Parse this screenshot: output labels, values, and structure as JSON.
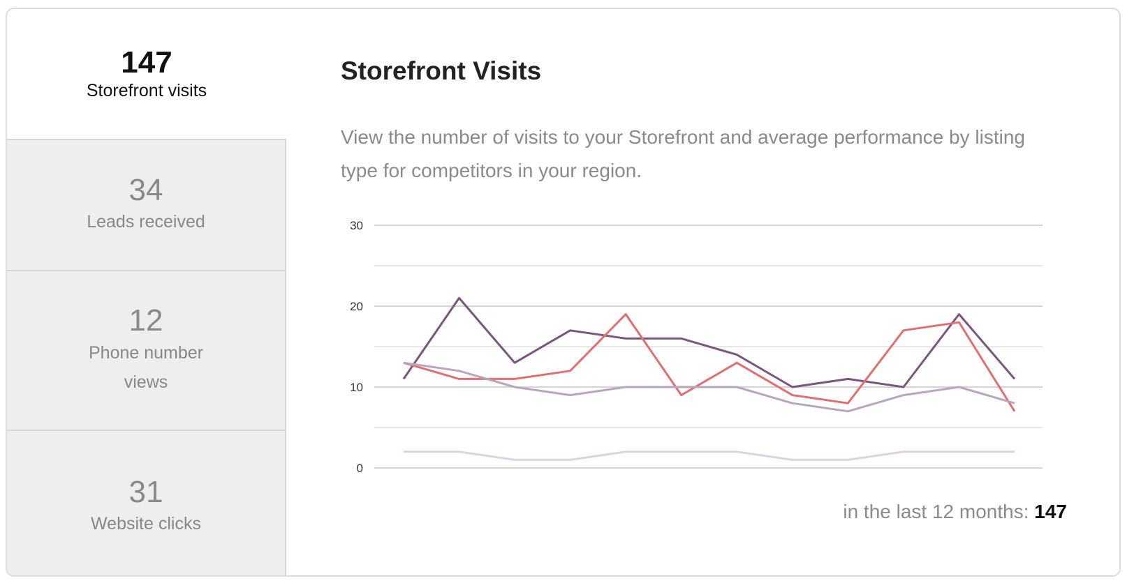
{
  "stats": [
    {
      "value": "147",
      "label": "Storefront visits",
      "active": true
    },
    {
      "value": "34",
      "label": "Leads received",
      "active": false
    },
    {
      "value": "12",
      "label": "Phone number views",
      "active": false
    },
    {
      "value": "31",
      "label": "Website clicks",
      "active": false
    }
  ],
  "main": {
    "title": "Storefront Visits",
    "description": "View the number of visits to your Storefront and average performance by listing type for competitors in your region.",
    "footer_label": "in the last 12 months: ",
    "footer_value": "147"
  },
  "chart_data": {
    "type": "line",
    "x": [
      1,
      2,
      3,
      4,
      5,
      6,
      7,
      8,
      9,
      10,
      11,
      12
    ],
    "ylim": [
      0,
      30
    ],
    "yticks": [
      0,
      10,
      20,
      30
    ],
    "grid": true,
    "series": [
      {
        "color": "#7b5580",
        "values": [
          11,
          21,
          13,
          17,
          16,
          16,
          14,
          10,
          11,
          10,
          19,
          11
        ]
      },
      {
        "color": "#e07070",
        "values": [
          13,
          11,
          11,
          12,
          19,
          9,
          13,
          9,
          8,
          17,
          18,
          7
        ]
      },
      {
        "color": "#b9a5bd",
        "values": [
          13,
          12,
          10,
          9,
          10,
          10,
          10,
          8,
          7,
          9,
          10,
          8
        ]
      },
      {
        "color": "#ddd2e0",
        "values": [
          2,
          2,
          1,
          1,
          2,
          2,
          2,
          1,
          1,
          2,
          2,
          2
        ]
      }
    ]
  }
}
